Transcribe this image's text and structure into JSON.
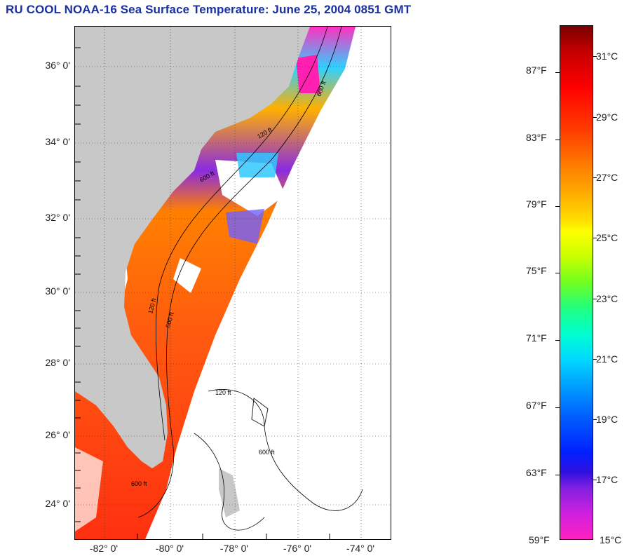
{
  "title": "RU COOL  NOAA-16  Sea Surface Temperature:  June 25, 2004 0851 GMT",
  "map": {
    "lat_labels": [
      "36° 0'",
      "34° 0'",
      "32° 0'",
      "30° 0'",
      "28° 0'",
      "26° 0'",
      "24° 0'"
    ],
    "lon_labels": [
      "-82° 0'",
      "-80° 0'",
      "-78° 0'",
      "-76° 0'",
      "-74° 0'"
    ],
    "contour_labels": [
      "600 ft",
      "120 ft",
      "600 ft",
      "120 ft",
      "600 ft",
      "600 ft",
      "600 ft",
      "120 ft"
    ],
    "colors": {
      "land": "#c8c8c8",
      "cloud": "#ffffff",
      "warm": "#ff5a10"
    }
  },
  "colorbar": {
    "fahrenheit": [
      "87°F",
      "83°F",
      "79°F",
      "75°F",
      "71°F",
      "67°F",
      "63°F",
      "59°F"
    ],
    "celsius": [
      "31°C",
      "29°C",
      "27°C",
      "25°C",
      "23°C",
      "21°C",
      "19°C",
      "17°C",
      "15°C"
    ],
    "range_celsius": [
      15,
      32
    ]
  }
}
